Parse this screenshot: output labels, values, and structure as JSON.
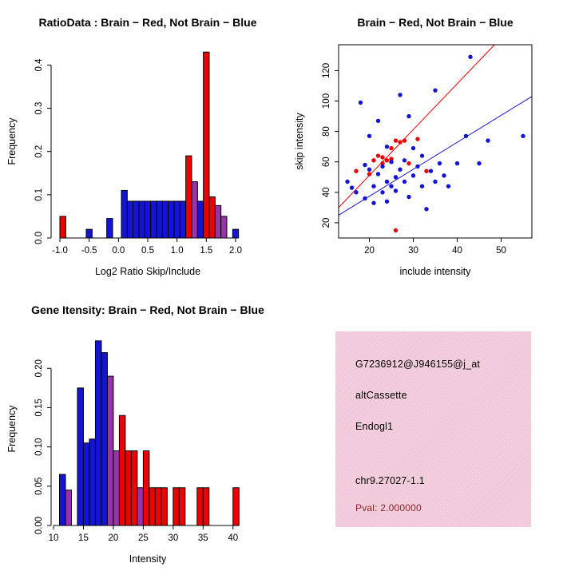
{
  "colors": {
    "red": "#EE0000",
    "blue": "#1414D6",
    "purple": "#9933AA",
    "info_bg": "#F0C6D8",
    "pval_text": "#8B2626",
    "axis": "#000000",
    "background": "#FFFFFF"
  },
  "info_panel": {
    "probe_id": "G7236912@J946155@j_at",
    "splice_type": "altCassette",
    "gene_symbol": "Endogl1",
    "location": "chr9.27027-1.1",
    "pval_label": "Pval: 2.000000"
  },
  "chart_data": [
    {
      "name": "ratio-hist",
      "panel": "top-left",
      "type": "bar",
      "subtype": "overlaid-histogram",
      "title": "RatioData : Brain − Red, Not Brain − Blue",
      "xlabel": "Log2 Ratio Skip/Include",
      "ylabel": "Frequency",
      "xlim": [
        -1.15,
        2.15
      ],
      "ylim": [
        0,
        0.447
      ],
      "grid": false,
      "xticks": [
        {
          "v": -1.0,
          "l": "-1.0"
        },
        {
          "v": -0.5,
          "l": "-0.5"
        },
        {
          "v": 0.0,
          "l": "0.0"
        },
        {
          "v": 0.5,
          "l": "0.5"
        },
        {
          "v": 1.0,
          "l": "1.0"
        },
        {
          "v": 1.5,
          "l": "1.5"
        },
        {
          "v": 2.0,
          "l": "2.0"
        }
      ],
      "yticks": [
        {
          "v": 0.0,
          "l": "0.0"
        },
        {
          "v": 0.1,
          "l": "0.1"
        },
        {
          "v": 0.2,
          "l": "0.2"
        },
        {
          "v": 0.3,
          "l": "0.3"
        },
        {
          "v": 0.4,
          "l": "0.4"
        }
      ],
      "bin_width": 0.1,
      "bars": [
        {
          "x": -1.0,
          "h": 0.05,
          "c": "red"
        },
        {
          "x": -0.55,
          "h": 0.02,
          "c": "blue"
        },
        {
          "x": -0.2,
          "h": 0.045,
          "c": "blue"
        },
        {
          "x": 0.05,
          "h": 0.11,
          "c": "blue"
        },
        {
          "x": 0.15,
          "h": 0.085,
          "c": "blue"
        },
        {
          "x": 0.25,
          "h": 0.085,
          "c": "blue"
        },
        {
          "x": 0.35,
          "h": 0.085,
          "c": "blue"
        },
        {
          "x": 0.45,
          "h": 0.085,
          "c": "blue"
        },
        {
          "x": 0.55,
          "h": 0.085,
          "c": "blue"
        },
        {
          "x": 0.65,
          "h": 0.085,
          "c": "blue"
        },
        {
          "x": 0.75,
          "h": 0.085,
          "c": "blue"
        },
        {
          "x": 0.85,
          "h": 0.085,
          "c": "blue"
        },
        {
          "x": 0.95,
          "h": 0.085,
          "c": "blue"
        },
        {
          "x": 1.05,
          "h": 0.085,
          "c": "blue"
        },
        {
          "x": 1.15,
          "h": 0.19,
          "c": "red"
        },
        {
          "x": 1.25,
          "h": 0.13,
          "c": "purple"
        },
        {
          "x": 1.35,
          "h": 0.085,
          "c": "blue"
        },
        {
          "x": 1.45,
          "h": 0.43,
          "c": "red"
        },
        {
          "x": 1.55,
          "h": 0.095,
          "c": "red"
        },
        {
          "x": 1.65,
          "h": 0.075,
          "c": "purple"
        },
        {
          "x": 1.75,
          "h": 0.05,
          "c": "purple"
        },
        {
          "x": 1.95,
          "h": 0.02,
          "c": "blue"
        }
      ]
    },
    {
      "name": "intensity-scatter",
      "panel": "top-right",
      "type": "scatter",
      "title": "Brain − Red, Not Brain − Blue",
      "xlabel": "include intensity",
      "ylabel": "skip intensity",
      "xlim": [
        13,
        57
      ],
      "ylim": [
        10,
        137
      ],
      "grid": false,
      "xticks": [
        {
          "v": 20,
          "l": "20"
        },
        {
          "v": 30,
          "l": "30"
        },
        {
          "v": 40,
          "l": "40"
        },
        {
          "v": 50,
          "l": "50"
        }
      ],
      "yticks": [
        {
          "v": 20,
          "l": "20"
        },
        {
          "v": 40,
          "l": "40"
        },
        {
          "v": 60,
          "l": "60"
        },
        {
          "v": 80,
          "l": "80"
        },
        {
          "v": 100,
          "l": "100"
        },
        {
          "v": 120,
          "l": "120"
        }
      ],
      "series": [
        {
          "name": "Brain",
          "color": "red",
          "points": [
            [
              17,
              54
            ],
            [
              20,
              52
            ],
            [
              21,
              61
            ],
            [
              22,
              64
            ],
            [
              23,
              63
            ],
            [
              23,
              59
            ],
            [
              24,
              61
            ],
            [
              25,
              62
            ],
            [
              25,
              69
            ],
            [
              26,
              74
            ],
            [
              27,
              73
            ],
            [
              28,
              74
            ],
            [
              29,
              59
            ],
            [
              31,
              75
            ],
            [
              33,
              54
            ],
            [
              26,
              15
            ]
          ]
        },
        {
          "name": "Not Brain",
          "color": "blue",
          "points": [
            [
              15,
              47
            ],
            [
              16,
              43
            ],
            [
              17,
              40
            ],
            [
              18,
              99
            ],
            [
              19,
              36
            ],
            [
              19,
              58
            ],
            [
              20,
              77
            ],
            [
              20,
              55
            ],
            [
              21,
              44
            ],
            [
              21,
              33
            ],
            [
              22,
              52
            ],
            [
              22,
              87
            ],
            [
              23,
              40
            ],
            [
              23,
              57
            ],
            [
              24,
              47
            ],
            [
              24,
              34
            ],
            [
              24,
              70
            ],
            [
              25,
              44
            ],
            [
              25,
              60
            ],
            [
              26,
              50
            ],
            [
              26,
              41
            ],
            [
              27,
              104
            ],
            [
              27,
              55
            ],
            [
              28,
              47
            ],
            [
              28,
              61
            ],
            [
              29,
              37
            ],
            [
              29,
              90
            ],
            [
              30,
              69
            ],
            [
              30,
              51
            ],
            [
              31,
              57
            ],
            [
              32,
              44
            ],
            [
              32,
              64
            ],
            [
              33,
              29
            ],
            [
              34,
              54
            ],
            [
              35,
              47
            ],
            [
              35,
              107
            ],
            [
              36,
              59
            ],
            [
              37,
              51
            ],
            [
              38,
              44
            ],
            [
              40,
              59
            ],
            [
              42,
              77
            ],
            [
              43,
              129
            ],
            [
              45,
              59
            ],
            [
              47,
              74
            ],
            [
              55,
              77
            ]
          ]
        }
      ],
      "fit_lines": [
        {
          "color": "red",
          "x1": 13,
          "y1": 30,
          "x2": 48.5,
          "y2": 137
        },
        {
          "color": "blue",
          "x1": 13,
          "y1": 25,
          "x2": 57,
          "y2": 103
        }
      ]
    },
    {
      "name": "gene-hist",
      "panel": "bottom-left",
      "type": "bar",
      "subtype": "overlaid-histogram",
      "title": "Gene Itensity: Brain − Red, Not Brain − Blue",
      "xlabel": "Intensity",
      "ylabel": "Frequency",
      "xlim": [
        9.6,
        41.9
      ],
      "ylim": [
        0,
        0.246
      ],
      "grid": false,
      "xticks": [
        {
          "v": 10,
          "l": "10"
        },
        {
          "v": 15,
          "l": "15"
        },
        {
          "v": 20,
          "l": "20"
        },
        {
          "v": 25,
          "l": "25"
        },
        {
          "v": 30,
          "l": "30"
        },
        {
          "v": 35,
          "l": "35"
        },
        {
          "v": 40,
          "l": "40"
        }
      ],
      "yticks": [
        {
          "v": 0.0,
          "l": "0.00"
        },
        {
          "v": 0.05,
          "l": "0.05"
        },
        {
          "v": 0.1,
          "l": "0.10"
        },
        {
          "v": 0.15,
          "l": "0.15"
        },
        {
          "v": 0.2,
          "l": "0.20"
        }
      ],
      "bin_width": 1,
      "bars": [
        {
          "x": 11,
          "h": 0.065,
          "c": "blue"
        },
        {
          "x": 12,
          "h": 0.045,
          "c": "purple"
        },
        {
          "x": 14,
          "h": 0.175,
          "c": "blue"
        },
        {
          "x": 15,
          "h": 0.105,
          "c": "blue"
        },
        {
          "x": 16,
          "h": 0.11,
          "c": "blue"
        },
        {
          "x": 17,
          "h": 0.235,
          "c": "blue"
        },
        {
          "x": 18,
          "h": 0.22,
          "c": "blue"
        },
        {
          "x": 19,
          "h": 0.19,
          "c": "purple"
        },
        {
          "x": 20,
          "h": 0.095,
          "c": "purple"
        },
        {
          "x": 21,
          "h": 0.14,
          "c": "red"
        },
        {
          "x": 22,
          "h": 0.095,
          "c": "red"
        },
        {
          "x": 23,
          "h": 0.095,
          "c": "red"
        },
        {
          "x": 24,
          "h": 0.048,
          "c": "purple"
        },
        {
          "x": 25,
          "h": 0.095,
          "c": "red"
        },
        {
          "x": 26,
          "h": 0.048,
          "c": "red"
        },
        {
          "x": 27,
          "h": 0.048,
          "c": "red"
        },
        {
          "x": 28,
          "h": 0.048,
          "c": "red"
        },
        {
          "x": 30,
          "h": 0.048,
          "c": "red"
        },
        {
          "x": 31,
          "h": 0.048,
          "c": "red"
        },
        {
          "x": 34,
          "h": 0.048,
          "c": "red"
        },
        {
          "x": 35,
          "h": 0.048,
          "c": "red"
        },
        {
          "x": 40,
          "h": 0.048,
          "c": "red"
        }
      ]
    }
  ]
}
